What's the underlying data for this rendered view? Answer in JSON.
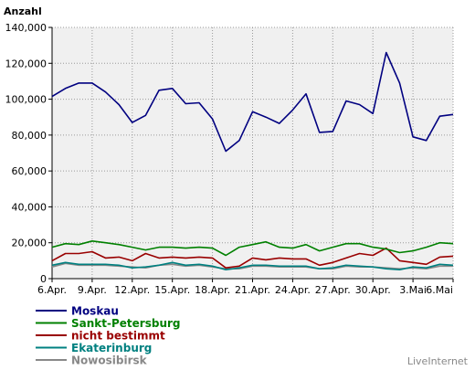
{
  "chart_data": {
    "type": "line",
    "ylabel": "Anzahl",
    "ylim": [
      0,
      140000
    ],
    "yticks": [
      "0",
      "20,000",
      "40,000",
      "60,000",
      "80,000",
      "100,000",
      "120,000",
      "140,000"
    ],
    "ytick_values": [
      0,
      20000,
      40000,
      60000,
      80000,
      100000,
      120000,
      140000
    ],
    "xticks": [
      "6.Apr.",
      "9.Apr.",
      "12.Apr.",
      "15.Apr.",
      "18.Apr.",
      "21.Apr.",
      "24.Apr.",
      "27.Apr.",
      "30.Apr.",
      "3.Mai",
      "6.Mai"
    ],
    "xtick_day_index": [
      0,
      3,
      6,
      9,
      12,
      15,
      18,
      21,
      24,
      27,
      30
    ],
    "days": 31,
    "grid": true,
    "legend_position": "bottom-left",
    "series": [
      {
        "name": "Moskau",
        "color": "#000080",
        "values": [
          101500,
          106000,
          109000,
          109000,
          104000,
          97000,
          87000,
          91000,
          105000,
          106000,
          97500,
          98000,
          89000,
          71000,
          77000,
          93000,
          90000,
          86500,
          94000,
          103000,
          81500,
          82000,
          99000,
          97000,
          92000,
          126000,
          109000,
          79000,
          77000,
          90500,
          91500
        ]
      },
      {
        "name": "Sankt-Petersburg",
        "color": "#008000",
        "values": [
          17500,
          19500,
          19000,
          21000,
          20000,
          19000,
          17500,
          16000,
          17500,
          17500,
          17000,
          17500,
          17000,
          13000,
          17500,
          19000,
          20500,
          17500,
          17000,
          19000,
          15500,
          17500,
          19500,
          19500,
          17500,
          16500,
          14500,
          15500,
          17500,
          20000,
          19500
        ]
      },
      {
        "name": "nicht bestimmt",
        "color": "#990000",
        "values": [
          10000,
          14000,
          14000,
          15000,
          11500,
          12000,
          10000,
          14000,
          11500,
          12000,
          11500,
          12000,
          11500,
          6000,
          7000,
          11500,
          10500,
          11500,
          11000,
          11000,
          7500,
          9000,
          11500,
          14000,
          13000,
          17000,
          10000,
          9000,
          8000,
          12000,
          12500
        ]
      },
      {
        "name": "Ekaterinburg",
        "color": "#008080",
        "values": [
          7500,
          9000,
          8000,
          8000,
          8000,
          7500,
          6000,
          6500,
          7500,
          9000,
          7500,
          8000,
          7000,
          5000,
          6000,
          7500,
          7500,
          7000,
          7000,
          7000,
          5500,
          6000,
          7500,
          7000,
          6500,
          5500,
          5000,
          6500,
          6000,
          8000,
          7500
        ]
      },
      {
        "name": "Nowosibirsk",
        "color": "#888888",
        "values": [
          6500,
          8500,
          7500,
          7500,
          7500,
          7000,
          6500,
          6000,
          7500,
          8000,
          7000,
          7500,
          6500,
          5500,
          5500,
          7000,
          7000,
          6500,
          6500,
          6500,
          5500,
          5500,
          7000,
          6500,
          6500,
          6000,
          5500,
          6000,
          5500,
          7000,
          7000
        ]
      }
    ]
  },
  "branding": "LiveInternet"
}
